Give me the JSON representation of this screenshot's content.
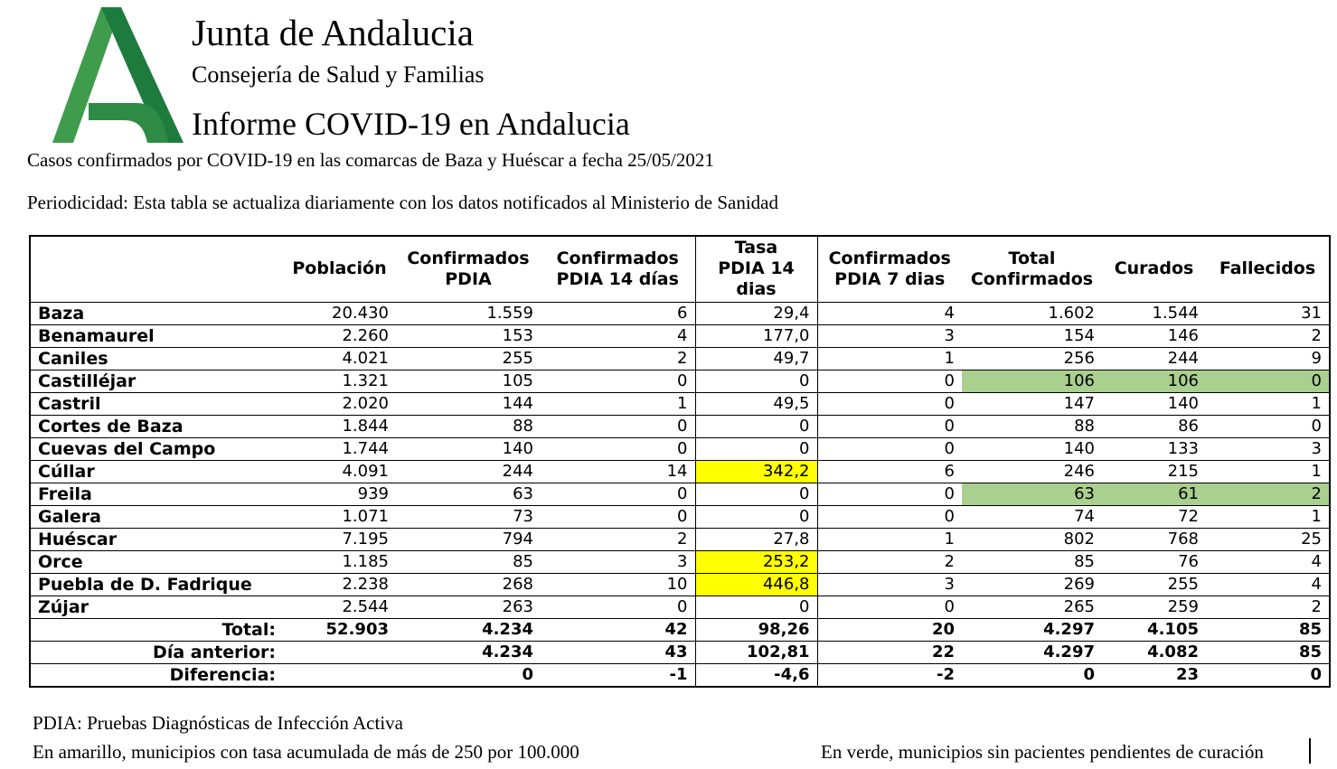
{
  "brand": {
    "title": "Junta de Andalucia",
    "subtitle": "Consejería de Salud y Familias",
    "report_title": "Informe COVID-19 en Andalucia"
  },
  "intro": {
    "caption": "Casos confirmados por COVID-19 en las comarcas de Baza y Huéscar a fecha 25/05/2021",
    "periodicity": "Periodicidad: Esta tabla se actualiza diariamente con los datos notificados al Ministerio de Sanidad"
  },
  "table": {
    "column_headers": [
      "",
      "Población",
      "Confirmados\nPDIA",
      "Confirmados\nPDIA 14 días",
      "Tasa\nPDIA 14\ndias",
      "Confirmados\nPDIA 7 dias",
      "Total\nConfirmados",
      "Curados",
      "Fallecidos"
    ],
    "rows": [
      {
        "municipio": "Baza",
        "values": [
          "20.430",
          "1.559",
          "6",
          "29,4",
          "4",
          "1.602",
          "1.544",
          "31"
        ],
        "tasa_yellow": false,
        "green_tail": false
      },
      {
        "municipio": "Benamaurel",
        "values": [
          "2.260",
          "153",
          "4",
          "177,0",
          "3",
          "154",
          "146",
          "2"
        ],
        "tasa_yellow": false,
        "green_tail": false
      },
      {
        "municipio": "Caniles",
        "values": [
          "4.021",
          "255",
          "2",
          "49,7",
          "1",
          "256",
          "244",
          "9"
        ],
        "tasa_yellow": false,
        "green_tail": false
      },
      {
        "municipio": "Castilléjar",
        "values": [
          "1.321",
          "105",
          "0",
          "0",
          "0",
          "106",
          "106",
          "0"
        ],
        "tasa_yellow": false,
        "green_tail": true
      },
      {
        "municipio": "Castril",
        "values": [
          "2.020",
          "144",
          "1",
          "49,5",
          "0",
          "147",
          "140",
          "1"
        ],
        "tasa_yellow": false,
        "green_tail": false
      },
      {
        "municipio": "Cortes de Baza",
        "values": [
          "1.844",
          "88",
          "0",
          "0",
          "0",
          "88",
          "86",
          "0"
        ],
        "tasa_yellow": false,
        "green_tail": false
      },
      {
        "municipio": "Cuevas del Campo",
        "values": [
          "1.744",
          "140",
          "0",
          "0",
          "0",
          "140",
          "133",
          "3"
        ],
        "tasa_yellow": false,
        "green_tail": false
      },
      {
        "municipio": "Cúllar",
        "values": [
          "4.091",
          "244",
          "14",
          "342,2",
          "6",
          "246",
          "215",
          "1"
        ],
        "tasa_yellow": true,
        "green_tail": false
      },
      {
        "municipio": "Freila",
        "values": [
          "939",
          "63",
          "0",
          "0",
          "0",
          "63",
          "61",
          "2"
        ],
        "tasa_yellow": false,
        "green_tail": true
      },
      {
        "municipio": "Galera",
        "values": [
          "1.071",
          "73",
          "0",
          "0",
          "0",
          "74",
          "72",
          "1"
        ],
        "tasa_yellow": false,
        "green_tail": false
      },
      {
        "municipio": "Huéscar",
        "values": [
          "7.195",
          "794",
          "2",
          "27,8",
          "1",
          "802",
          "768",
          "25"
        ],
        "tasa_yellow": false,
        "green_tail": false
      },
      {
        "municipio": "Orce",
        "values": [
          "1.185",
          "85",
          "3",
          "253,2",
          "2",
          "85",
          "76",
          "4"
        ],
        "tasa_yellow": true,
        "green_tail": false
      },
      {
        "municipio": "Puebla de D. Fadrique",
        "values": [
          "2.238",
          "268",
          "10",
          "446,8",
          "3",
          "269",
          "255",
          "4"
        ],
        "tasa_yellow": true,
        "green_tail": false
      },
      {
        "municipio": "Zújar",
        "values": [
          "2.544",
          "263",
          "0",
          "0",
          "0",
          "265",
          "259",
          "2"
        ],
        "tasa_yellow": false,
        "green_tail": false
      }
    ],
    "summary_rows": [
      {
        "label": "Total:",
        "values": [
          "52.903",
          "4.234",
          "42",
          "98,26",
          "20",
          "4.297",
          "4.105",
          "85"
        ]
      },
      {
        "label": "Día anterior:",
        "values": [
          "",
          "4.234",
          "43",
          "102,81",
          "22",
          "4.297",
          "4.082",
          "85"
        ]
      },
      {
        "label": "Diferencia:",
        "values": [
          "",
          "0",
          "-1",
          "-4,6",
          "-2",
          "0",
          "23",
          "0"
        ]
      }
    ]
  },
  "footnotes": {
    "pdia": "PDIA: Pruebas Diagnósticas de Infección Activa",
    "yellow_note": "En amarillo, municipios con tasa acumulada de más de 250 por 100.000",
    "green_note": "En verde, municipios sin pacientes pendientes de curación"
  },
  "colors": {
    "yellow_highlight": "#FFFF00",
    "green_highlight": "#A9D08E",
    "logo_green_light": "#3F9C4D",
    "logo_green_dark": "#1E7B3E",
    "logo_green_mid": "#2E8B45"
  }
}
